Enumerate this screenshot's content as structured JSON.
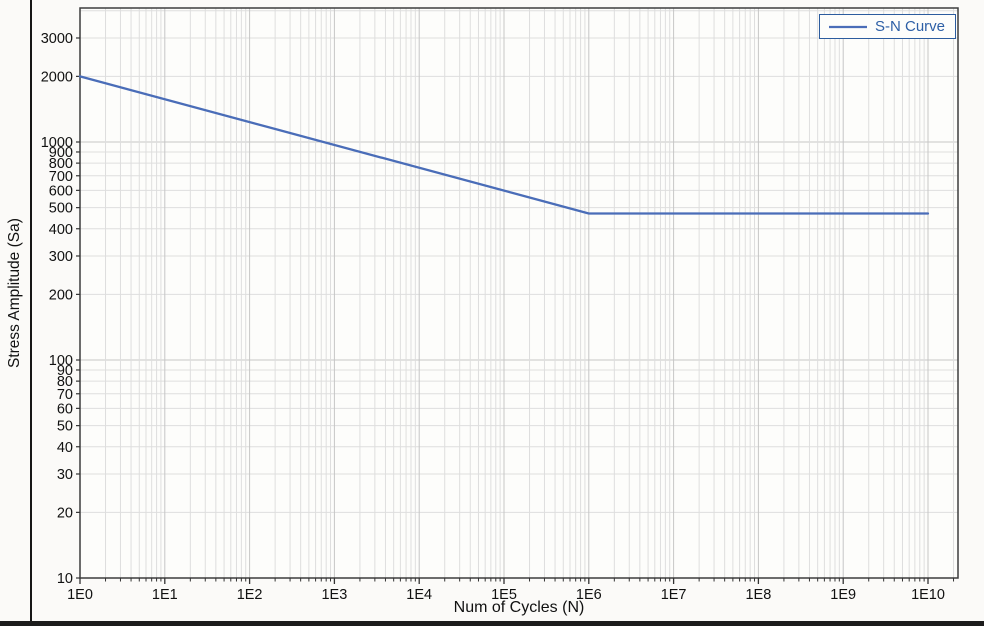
{
  "colors": {
    "background": "#fbfaf8",
    "plot_bg": "#fdfdfb",
    "frame": "#3d3d3d",
    "grid_minor": "#dedede",
    "grid_major": "#c6c6c6",
    "tick": "#333333",
    "text": "#111111",
    "line": "#4a6db8",
    "legend_border": "#2c5c9e",
    "legend_text": "#2d5fa6"
  },
  "chart_data": {
    "type": "line",
    "title": "",
    "xlabel": "Num of Cycles (N)",
    "ylabel": "Stress Amplitude (Sa)",
    "x_scale": "log",
    "y_scale": "log",
    "xlim": [
      1,
      22600000000
    ],
    "ylim": [
      10,
      4120
    ],
    "grid": "on",
    "legend_position": "top-right",
    "x_ticks": [
      {
        "value": 1,
        "label": "1E0"
      },
      {
        "value": 10,
        "label": "1E1"
      },
      {
        "value": 100,
        "label": "1E2"
      },
      {
        "value": 1000,
        "label": "1E3"
      },
      {
        "value": 10000,
        "label": "1E4"
      },
      {
        "value": 100000,
        "label": "1E5"
      },
      {
        "value": 1000000,
        "label": "1E6"
      },
      {
        "value": 10000000,
        "label": "1E7"
      },
      {
        "value": 100000000,
        "label": "1E8"
      },
      {
        "value": 1000000000,
        "label": "1E9"
      },
      {
        "value": 10000000000,
        "label": "1E10"
      }
    ],
    "y_ticks": [
      {
        "value": 3000,
        "label": "3000"
      },
      {
        "value": 2000,
        "label": "2000"
      },
      {
        "value": 1000,
        "label": "1000"
      },
      {
        "value": 900,
        "label": "900"
      },
      {
        "value": 800,
        "label": "800"
      },
      {
        "value": 700,
        "label": "700"
      },
      {
        "value": 600,
        "label": "600"
      },
      {
        "value": 500,
        "label": "500"
      },
      {
        "value": 400,
        "label": "400"
      },
      {
        "value": 300,
        "label": "300"
      },
      {
        "value": 200,
        "label": "200"
      },
      {
        "value": 100,
        "label": "100"
      },
      {
        "value": 90,
        "label": "90"
      },
      {
        "value": 80,
        "label": "80"
      },
      {
        "value": 70,
        "label": "70"
      },
      {
        "value": 60,
        "label": "60"
      },
      {
        "value": 50,
        "label": "50"
      },
      {
        "value": 40,
        "label": "40"
      },
      {
        "value": 30,
        "label": "30"
      },
      {
        "value": 20,
        "label": "20"
      },
      {
        "value": 10,
        "label": "10"
      }
    ],
    "series": [
      {
        "name": "S-N Curve",
        "color": "#4a6db8",
        "x": [
          1,
          1000000,
          10000000000
        ],
        "y": [
          2000,
          470,
          470
        ]
      }
    ]
  }
}
